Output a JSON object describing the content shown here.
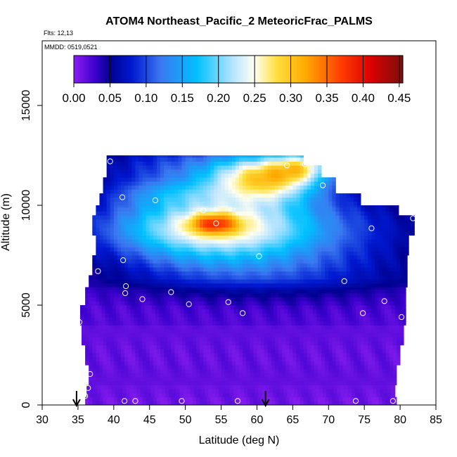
{
  "chart_data": {
    "type": "heatmap",
    "title": "ATOM4 Northeast_Pacific_2 MeteoricFrac_PALMS",
    "subtitle_flights": "Flts: 12,13",
    "subtitle_dates": "MMDD: 0519,0521",
    "xlabel": "Latitude (deg N)",
    "ylabel": "Altitude (m)",
    "xlim": [
      30,
      85
    ],
    "ylim": [
      0,
      17200
    ],
    "x_ticks": [
      30,
      35,
      40,
      45,
      50,
      55,
      60,
      65,
      70,
      75,
      80,
      85
    ],
    "y_ticks": [
      0,
      5000,
      10000,
      15000
    ],
    "y_tick_labels": [
      "0",
      "5000",
      "10000",
      "15000"
    ],
    "colorbar": {
      "min": 0,
      "max": 0.455,
      "ticks": [
        0.0,
        0.05,
        0.1,
        0.15,
        0.2,
        0.25,
        0.3,
        0.35,
        0.4,
        0.45
      ],
      "tick_labels": [
        "0.00",
        "0.05",
        "0.10",
        "0.15",
        "0.20",
        "0.25",
        "0.30",
        "0.35",
        "0.40",
        "0.45"
      ],
      "stops": [
        {
          "v": 0.0,
          "c": "#8a1ef2"
        },
        {
          "v": 0.03,
          "c": "#3a00cc"
        },
        {
          "v": 0.05,
          "c": "#000090"
        },
        {
          "v": 0.08,
          "c": "#0018d0"
        },
        {
          "v": 0.12,
          "c": "#3a78f0"
        },
        {
          "v": 0.17,
          "c": "#00c0ff"
        },
        {
          "v": 0.22,
          "c": "#b8e4ff"
        },
        {
          "v": 0.25,
          "c": "#fffff0"
        },
        {
          "v": 0.28,
          "c": "#ffe040"
        },
        {
          "v": 0.32,
          "c": "#ffaa00"
        },
        {
          "v": 0.37,
          "c": "#ff3c00"
        },
        {
          "v": 0.41,
          "c": "#dd0000"
        },
        {
          "v": 0.455,
          "c": "#7a1010"
        }
      ]
    },
    "grid": false,
    "legend_position": "top-center",
    "arrows_lat": [
      34.8,
      61.2
    ],
    "field": {
      "lat_start": 35.5,
      "lat_step": 0.5,
      "alt_step": 200,
      "bands": [
        {
          "a0": 0,
          "a1": 400,
          "la": 36.0,
          "lb": 79.5,
          "base": 0.01
        },
        {
          "a0": 400,
          "a1": 1000,
          "la": 36.2,
          "lb": 79.3,
          "base": 0.012
        },
        {
          "a0": 1000,
          "a1": 2000,
          "la": 36.5,
          "lb": 79.5,
          "base": 0.015
        },
        {
          "a0": 2000,
          "a1": 3000,
          "la": 36.0,
          "lb": 80.0,
          "base": 0.014
        },
        {
          "a0": 3000,
          "a1": 4000,
          "la": 35.5,
          "lb": 80.5,
          "base": 0.015
        },
        {
          "a0": 4000,
          "a1": 5000,
          "la": 35.3,
          "lb": 80.8,
          "base": 0.02
        },
        {
          "a0": 5000,
          "a1": 5900,
          "la": 36.0,
          "lb": 80.8,
          "base": 0.022
        },
        {
          "a0": 5900,
          "a1": 6500,
          "la": 36.5,
          "lb": 81.0,
          "base": 0.025
        },
        {
          "a0": 6500,
          "a1": 7500,
          "la": 37.0,
          "lb": 81.0,
          "base": 0.02
        },
        {
          "a0": 7500,
          "a1": 8500,
          "la": 37.5,
          "lb": 81.2,
          "base": 0.02
        },
        {
          "a0": 8500,
          "a1": 9500,
          "la": 37.0,
          "lb": 82.0,
          "base": 0.02
        },
        {
          "a0": 9500,
          "a1": 10000,
          "la": 37.5,
          "lb": 79.8,
          "base": 0.02
        },
        {
          "a0": 10000,
          "a1": 10600,
          "la": 38.0,
          "lb": 74.5,
          "base": 0.02
        },
        {
          "a0": 10600,
          "a1": 11400,
          "la": 38.5,
          "lb": 71.0,
          "base": 0.02
        },
        {
          "a0": 11400,
          "a1": 12000,
          "la": 39.0,
          "lb": 69.0,
          "base": 0.02
        },
        {
          "a0": 12000,
          "a1": 12500,
          "la": 39.0,
          "lb": 66.5,
          "base": 0.02
        }
      ],
      "blobs": [
        {
          "lat": 53.5,
          "alt": 8900,
          "sl": 10.0,
          "sa": 1150,
          "amp": 0.18
        },
        {
          "lat": 62.0,
          "alt": 8600,
          "sl": 15.0,
          "sa": 1700,
          "amp": 0.08
        },
        {
          "lat": 54.0,
          "alt": 9100,
          "sl": 2.3,
          "sa": 350,
          "amp": 0.12
        },
        {
          "lat": 61.5,
          "alt": 11400,
          "sl": 5.5,
          "sa": 850,
          "amp": 0.22
        },
        {
          "lat": 66.5,
          "alt": 12000,
          "sl": 3.0,
          "sa": 500,
          "amp": 0.12
        },
        {
          "lat": 50.0,
          "alt": 12000,
          "sl": 9.0,
          "sa": 900,
          "amp": 0.07
        },
        {
          "lat": 60.0,
          "alt": 6600,
          "sl": 14.0,
          "sa": 700,
          "amp": 0.035
        },
        {
          "lat": 48.0,
          "alt": 10600,
          "sl": 6.0,
          "sa": 500,
          "amp": 0.05
        }
      ]
    },
    "sample_points": [
      [
        39.5,
        12200
      ],
      [
        41.2,
        10400
      ],
      [
        45.8,
        10250
      ],
      [
        41.3,
        7250
      ],
      [
        37.8,
        6700
      ],
      [
        41.7,
        5950
      ],
      [
        41.6,
        5600
      ],
      [
        44.0,
        5300
      ],
      [
        48.0,
        5650
      ],
      [
        50.5,
        5050
      ],
      [
        52.5,
        9750
      ],
      [
        54.3,
        9100
      ],
      [
        56.0,
        5150
      ],
      [
        58.0,
        4600
      ],
      [
        60.3,
        7450
      ],
      [
        64.2,
        12000
      ],
      [
        66.7,
        12050
      ],
      [
        69.2,
        11000
      ],
      [
        72.2,
        6200
      ],
      [
        76.0,
        8850
      ],
      [
        77.8,
        5200
      ],
      [
        80.2,
        4400
      ],
      [
        74.8,
        4600
      ],
      [
        81.8,
        9350
      ],
      [
        35.2,
        4150
      ],
      [
        36.7,
        1550
      ],
      [
        36.4,
        850
      ],
      [
        36.0,
        450
      ],
      [
        41.5,
        200
      ],
      [
        43.0,
        200
      ],
      [
        49.5,
        200
      ],
      [
        57.3,
        200
      ],
      [
        73.8,
        200
      ],
      [
        79.0,
        200
      ]
    ]
  }
}
